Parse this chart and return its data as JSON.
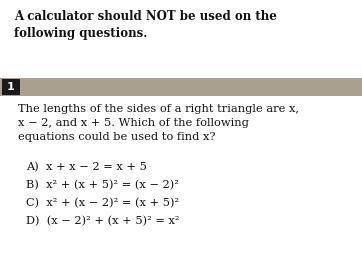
{
  "bg_color": "#ffffff",
  "header_line1": "A calculator should ",
  "header_bold": "A calculator should NOT be used on the\nfollowing questions.",
  "number_box_color": "#1a1a1a",
  "number_box_text": "1",
  "number_box_text_color": "#ffffff",
  "banner_color": "#aaa090",
  "question_text": "The lengths of the sides of a right triangle are x,\nx − 2, and x + 5. Which of the following\nequations could be used to find x?",
  "choices": [
    "A)  x + x − 2 = x + 5",
    "B)  x² + (x + 5)² = (x − 2)²",
    "C)  x² + (x − 2)² = (x + 5)²",
    "D)  (x − 2)² + (x + 5)² = x²"
  ],
  "header_fontsize": 8.5,
  "question_fontsize": 8.2,
  "choice_fontsize": 8.2,
  "number_fontsize": 8.0
}
